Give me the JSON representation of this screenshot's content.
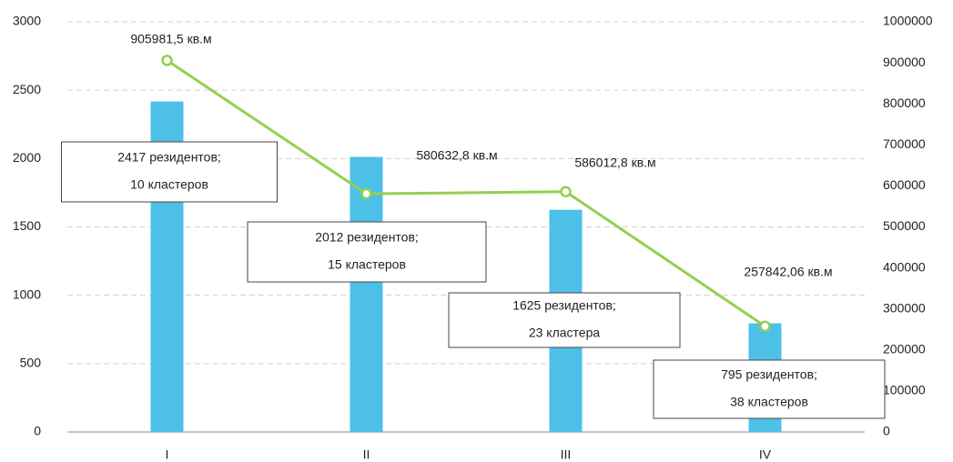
{
  "chart_data": {
    "type": "bar-line",
    "categories": [
      "I",
      "II",
      "III",
      "IV"
    ],
    "series": [
      {
        "type": "bar",
        "color": "#4dc0e8",
        "values": [
          2417,
          2012,
          1625,
          795
        ],
        "value_labels": [
          [
            "2417 резидентов;",
            "10 кластеров"
          ],
          [
            "2012 резидентов;",
            "15 кластеров"
          ],
          [
            "1625 резидентов;",
            "23 кластера"
          ],
          [
            "795 резидентов;",
            "38 кластеров"
          ]
        ]
      },
      {
        "type": "line",
        "axis": "y2",
        "color": "#92d050",
        "values": [
          905981.5,
          580632.8,
          586012.8,
          257842.06
        ],
        "value_labels": [
          "905981,5 кв.м",
          "580632,8 кв.м",
          "586012,8 кв.м",
          "257842,06 кв.м"
        ]
      }
    ],
    "ylim": [
      0,
      3000
    ],
    "yticks": [
      0,
      500,
      1000,
      1500,
      2000,
      2500,
      3000
    ],
    "y2lim": [
      0,
      1000000
    ],
    "y2ticks": [
      0,
      100000,
      200000,
      300000,
      400000,
      500000,
      600000,
      700000,
      800000,
      900000,
      1000000
    ],
    "grid": true
  }
}
